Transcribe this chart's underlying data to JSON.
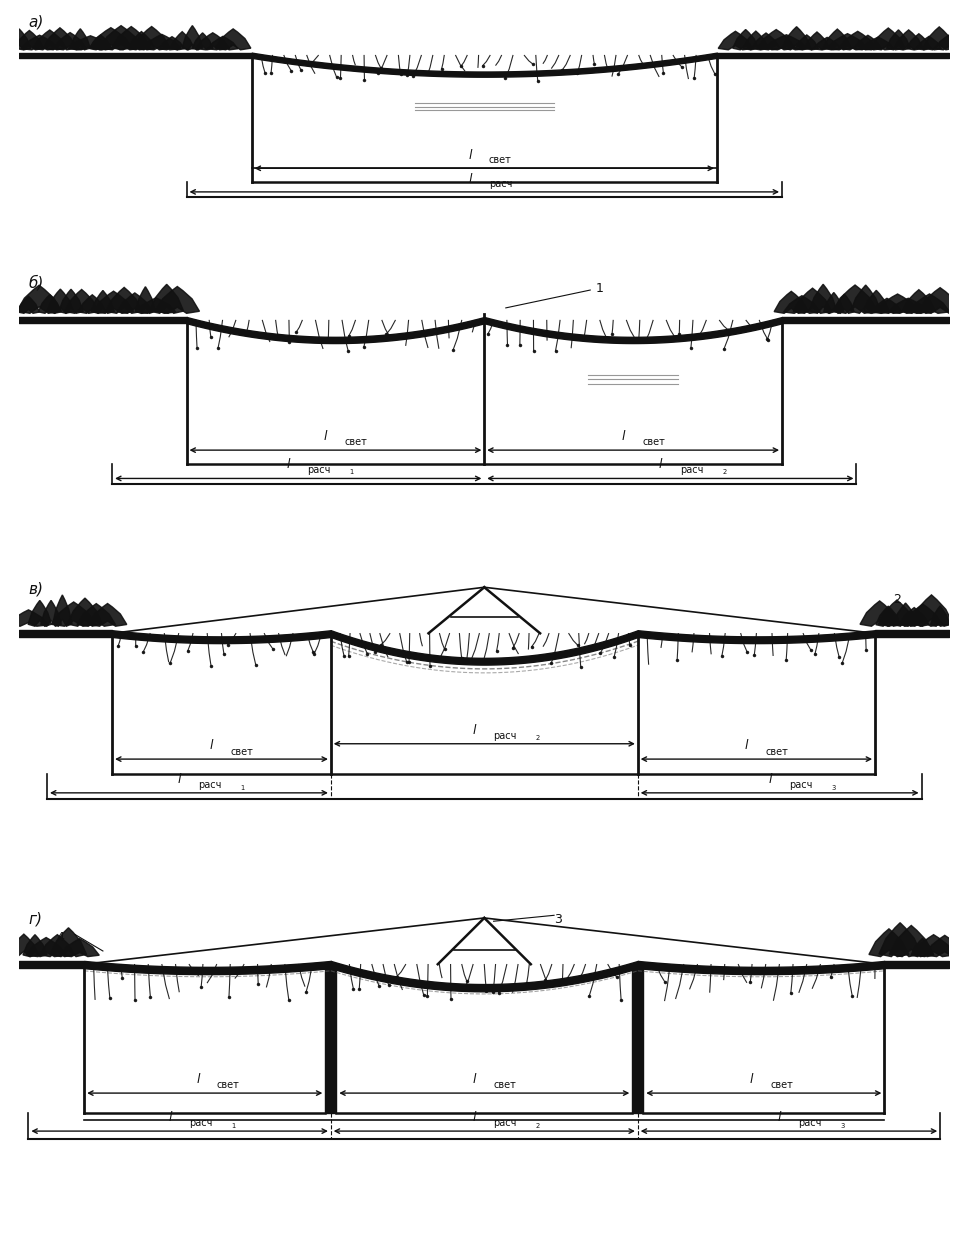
{
  "bg_color": "#ffffff",
  "lc": "#111111",
  "panels": [
    "а)",
    "б)",
    "в)",
    "г)"
  ],
  "figsize": [
    9.59,
    12.51
  ],
  "dpi": 100
}
